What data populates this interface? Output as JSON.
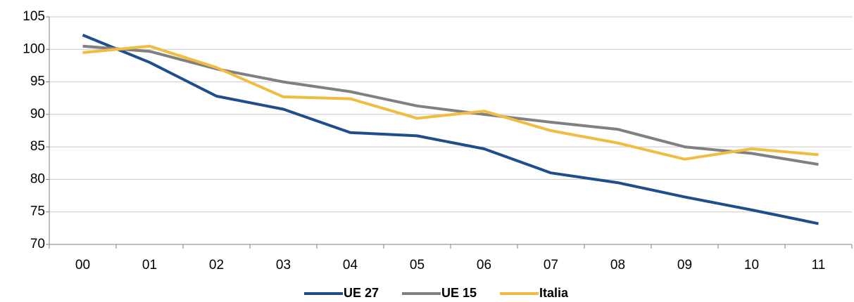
{
  "chart_data": {
    "type": "line",
    "categories": [
      "00",
      "01",
      "02",
      "03",
      "04",
      "05",
      "06",
      "07",
      "08",
      "09",
      "10",
      "11"
    ],
    "series": [
      {
        "name": "UE 27",
        "color": "#1f4e8c",
        "values": [
          102.2,
          98,
          92.8,
          90.8,
          87.2,
          86.7,
          84.7,
          81,
          79.5,
          77.3,
          75.3,
          73.2
        ]
      },
      {
        "name": "UE 15",
        "color": "#808080",
        "values": [
          100.5,
          99.7,
          97,
          95,
          93.5,
          91.3,
          90,
          88.8,
          87.7,
          85,
          84,
          82.3
        ]
      },
      {
        "name": "Italia",
        "color": "#f0bc42",
        "values": [
          99.5,
          100.5,
          97.2,
          92.7,
          92.4,
          89.4,
          90.5,
          87.5,
          85.6,
          83.1,
          84.7,
          83.8
        ]
      }
    ],
    "ylim": [
      70,
      105
    ],
    "yticks": [
      70,
      75,
      80,
      85,
      90,
      95,
      100,
      105
    ],
    "grid": true,
    "legend": "bottom"
  }
}
